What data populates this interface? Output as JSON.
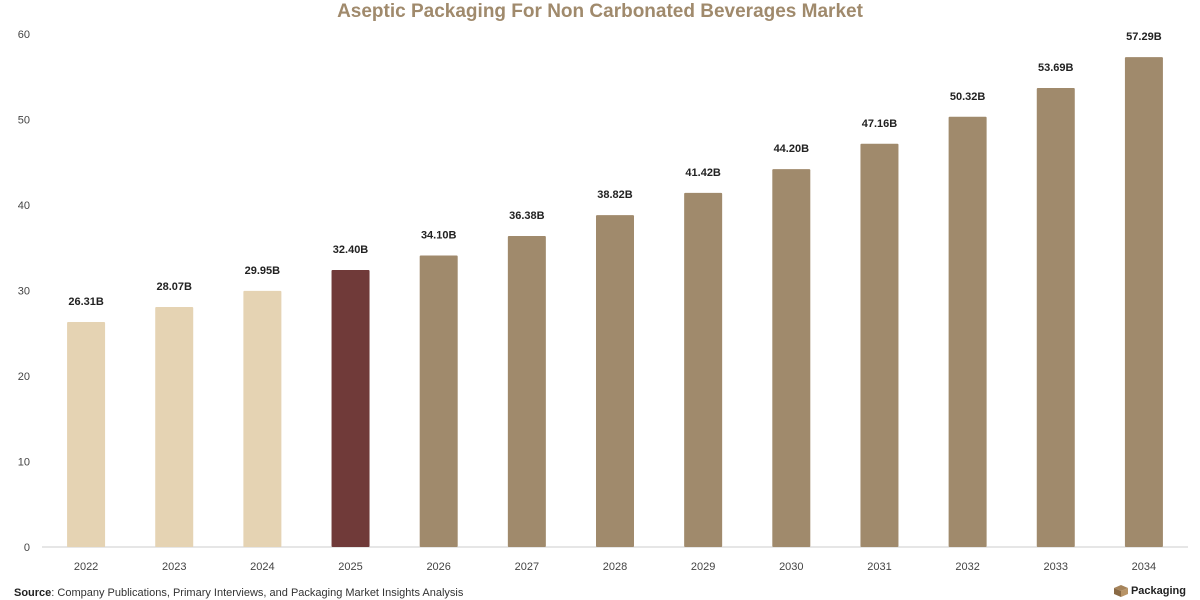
{
  "chart_data": {
    "type": "bar",
    "title": "Aseptic Packaging For Non Carbonated Beverages Market",
    "categories": [
      "2022",
      "2023",
      "2024",
      "2025",
      "2026",
      "2027",
      "2028",
      "2029",
      "2030",
      "2031",
      "2032",
      "2033",
      "2034"
    ],
    "values": [
      26.31,
      28.07,
      29.95,
      32.4,
      34.1,
      36.38,
      38.82,
      41.42,
      44.2,
      47.16,
      50.32,
      53.69,
      57.29
    ],
    "data_labels": [
      "26.31B",
      "28.07B",
      "29.95B",
      "32.40B",
      "34.10B",
      "36.38B",
      "38.82B",
      "41.42B",
      "44.20B",
      "47.16B",
      "50.32B",
      "53.69B",
      "57.29B"
    ],
    "xlabel": "",
    "ylabel": "",
    "ylim": [
      0,
      60
    ],
    "yticks": [
      0,
      10,
      20,
      30,
      40,
      50,
      60
    ],
    "grid": false,
    "legend": "none",
    "colors": {
      "title": "#a08a6c",
      "historical": "#e5d3b3",
      "current": "#703a39",
      "forecast": "#a08a6c",
      "axis": "#cccccc",
      "tick_text": "#444444",
      "label_text": "#222222"
    },
    "bar_colors": [
      "historical",
      "historical",
      "historical",
      "current",
      "forecast",
      "forecast",
      "forecast",
      "forecast",
      "forecast",
      "forecast",
      "forecast",
      "forecast",
      "forecast"
    ]
  },
  "footer": {
    "source_label": "Source",
    "source_text": ": Company Publications, Primary Interviews, and Packaging Market Insights Analysis"
  },
  "logo": {
    "text": "Packaging",
    "icon": "box-icon"
  }
}
